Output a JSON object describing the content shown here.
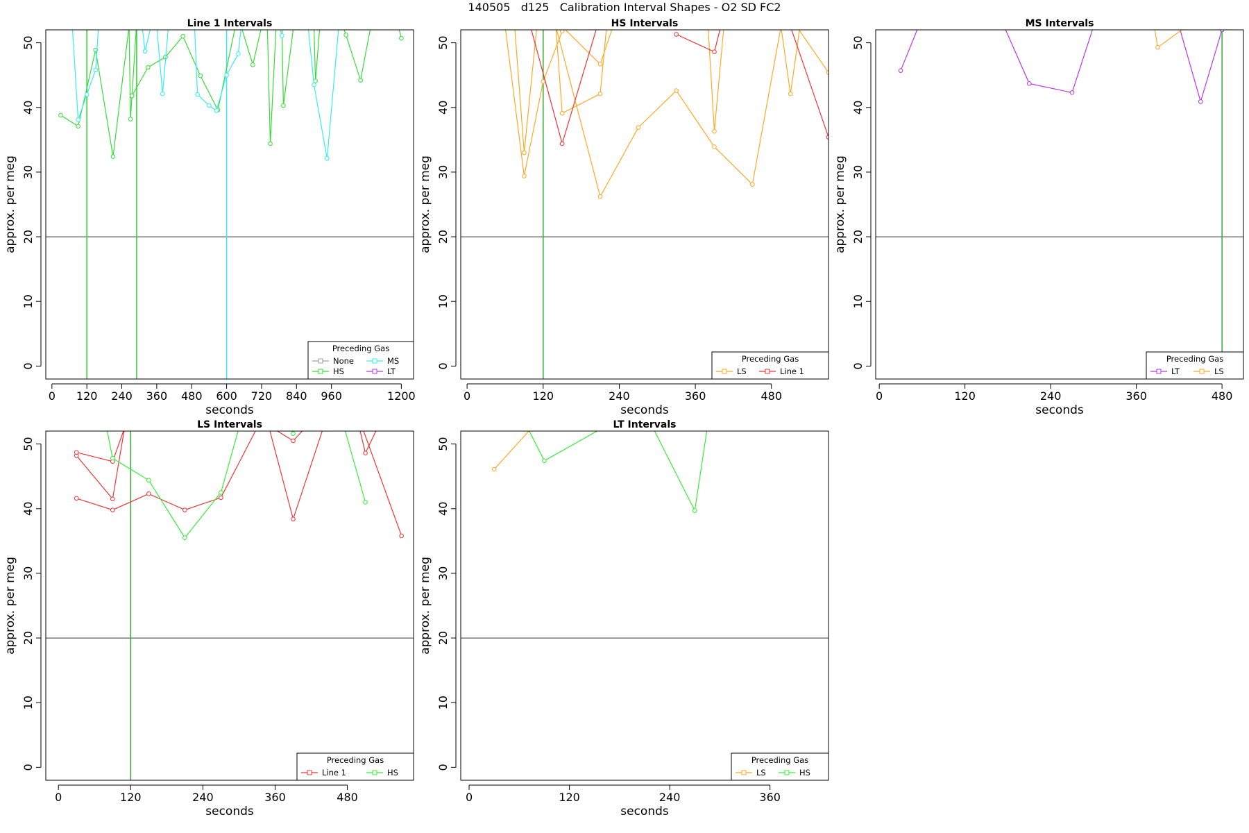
{
  "page_title": "140505   d125   Calibration Interval Shapes - O2 SD FC2",
  "chart_data": [
    {
      "type": "line",
      "title": "Line 1 Intervals",
      "xlabel": "seconds",
      "ylabel": "approx. per meg",
      "xlim": [
        -21,
        1242
      ],
      "ylim": [
        -2,
        52
      ],
      "x_ticks": [
        0,
        120,
        240,
        360,
        480,
        600,
        720,
        840,
        960,
        1200
      ],
      "x_tick_labels": [
        "0",
        "120",
        "240",
        "360",
        "480",
        "600",
        "720",
        "840",
        "960",
        "1200"
      ],
      "y_ticks": [
        0,
        10,
        20,
        30,
        40,
        50
      ],
      "hline": 20,
      "legend": {
        "title": "Preceding Gas",
        "position": "bottom-right",
        "columns": 2,
        "entries": [
          {
            "label": "None",
            "color": "#9e9e9e"
          },
          {
            "label": "MS",
            "color": "#33eeee"
          },
          {
            "label": "HS",
            "color": "#33dd33"
          },
          {
            "label": "LT",
            "color": "#bb33ee"
          }
        ]
      },
      "vlines": [
        {
          "x": 120,
          "color": "#33cc33"
        },
        {
          "x": 291,
          "color": "#33cc33"
        },
        {
          "x": 600,
          "color": "#33eeee"
        }
      ],
      "series": [
        {
          "name": "HS",
          "color": "#33dd33",
          "points": [
            [
              30,
              38.8
            ],
            [
              90,
              37.1
            ],
            [
              150,
              48.9
            ],
            [
              210,
              32.4
            ],
            [
              265,
              52.5
            ]
          ]
        },
        {
          "name": "HS",
          "color": "#33dd33",
          "points": [
            [
              265,
              52.5
            ],
            [
              270,
              38.2
            ],
            [
              275,
              41.8
            ],
            [
              290,
              52.5
            ]
          ]
        },
        {
          "name": "HS",
          "color": "#33dd33",
          "points": [
            [
              275,
              41.8
            ],
            [
              330,
              46.2
            ],
            [
              390,
              47.8
            ],
            [
              450,
              51.0
            ],
            [
              510,
              44.9
            ],
            [
              570,
              39.6
            ],
            [
              630,
              52.5
            ]
          ]
        },
        {
          "name": "HS",
          "color": "#33dd33",
          "points": [
            [
              650,
              52.5
            ],
            [
              690,
              46.6
            ],
            [
              720,
              52.5
            ]
          ]
        },
        {
          "name": "HS",
          "color": "#33dd33",
          "points": [
            [
              740,
              52.5
            ],
            [
              750,
              34.4
            ],
            [
              770,
              52.5
            ]
          ]
        },
        {
          "name": "HS",
          "color": "#33dd33",
          "points": [
            [
              790,
              52.5
            ],
            [
              795,
              40.3
            ],
            [
              830,
              52.5
            ]
          ]
        },
        {
          "name": "HS",
          "color": "#33dd33",
          "points": [
            [
              900,
              52.5
            ],
            [
              905,
              44.1
            ],
            [
              920,
              52.5
            ]
          ]
        },
        {
          "name": "HS",
          "color": "#33dd33",
          "points": [
            [
              1000,
              52.5
            ],
            [
              1010,
              51.2
            ],
            [
              1060,
              44.2
            ],
            [
              1095,
              52.5
            ]
          ]
        },
        {
          "name": "HS",
          "color": "#33dd33",
          "points": [
            [
              1190,
              52.5
            ],
            [
              1200,
              50.7
            ]
          ]
        },
        {
          "name": "MS",
          "color": "#33eeee",
          "points": [
            [
              70,
              52.5
            ],
            [
              90,
              38.1
            ],
            [
              120,
              42.0
            ],
            [
              150,
              45.8
            ],
            [
              160,
              52.5
            ]
          ]
        },
        {
          "name": "MS",
          "color": "#33eeee",
          "points": [
            [
              310,
              52.5
            ],
            [
              320,
              48.7
            ],
            [
              340,
              52.5
            ]
          ]
        },
        {
          "name": "MS",
          "color": "#33eeee",
          "points": [
            [
              360,
              52.5
            ],
            [
              380,
              42.1
            ],
            [
              400,
              52.5
            ]
          ]
        },
        {
          "name": "MS",
          "color": "#33eeee",
          "points": [
            [
              490,
              52.5
            ],
            [
              500,
              42.0
            ],
            [
              540,
              40.3
            ],
            [
              565,
              39.5
            ],
            [
              600,
              45.0
            ],
            [
              640,
              48.3
            ],
            [
              650,
              52.5
            ]
          ]
        },
        {
          "name": "MS",
          "color": "#33eeee",
          "points": [
            [
              780,
              52.5
            ],
            [
              790,
              51.1
            ]
          ]
        },
        {
          "name": "MS",
          "color": "#33eeee",
          "points": [
            [
              880,
              52.5
            ],
            [
              900,
              43.5
            ],
            [
              945,
              32.1
            ],
            [
              985,
              52.5
            ]
          ]
        }
      ]
    },
    {
      "type": "line",
      "title": "HS Intervals",
      "xlabel": "seconds",
      "ylabel": "approx. per meg",
      "xlim": [
        -10,
        570
      ],
      "ylim": [
        -2,
        52
      ],
      "x_ticks": [
        0,
        120,
        240,
        360,
        480
      ],
      "x_tick_labels": [
        "0",
        "120",
        "240",
        "360",
        "480"
      ],
      "y_ticks": [
        0,
        10,
        20,
        30,
        40,
        50
      ],
      "hline": 20,
      "legend": {
        "title": "Preceding Gas",
        "position": "bottom-right",
        "columns": 2,
        "entries": [
          {
            "label": "LS",
            "color": "#ffa726"
          },
          {
            "label": "Line 1",
            "color": "#ee3333"
          }
        ]
      },
      "vlines": [
        {
          "x": 120,
          "color": "#33aa33"
        }
      ],
      "series": [
        {
          "name": "LS",
          "color": "#ffa726",
          "points": [
            [
              60,
              52.5
            ],
            [
              90,
              29.4
            ],
            [
              120,
              44.0
            ],
            [
              150,
              51.8
            ],
            [
              162,
              52.5
            ]
          ]
        },
        {
          "name": "LS",
          "color": "#ffa726",
          "points": [
            [
              75,
              52.5
            ],
            [
              90,
              33.0
            ],
            [
              110,
              52.5
            ]
          ]
        },
        {
          "name": "LS",
          "color": "#ffa726",
          "points": [
            [
              140,
              52.5
            ],
            [
              150,
              39.1
            ],
            [
              210,
              42.1
            ],
            [
              220,
              52.5
            ]
          ]
        },
        {
          "name": "LS",
          "color": "#ffa726",
          "points": [
            [
              150,
              52.5
            ],
            [
              210,
              46.7
            ],
            [
              230,
              52.5
            ]
          ]
        },
        {
          "name": "LS",
          "color": "#ffa726",
          "points": [
            [
              140,
              52.5
            ],
            [
              210,
              26.2
            ],
            [
              270,
              36.9
            ],
            [
              330,
              42.6
            ],
            [
              390,
              33.9
            ],
            [
              450,
              28.1
            ],
            [
              495,
              52.5
            ]
          ]
        },
        {
          "name": "LS",
          "color": "#ffa726",
          "points": [
            [
              380,
              52.5
            ],
            [
              390,
              36.3
            ],
            [
              405,
              52.5
            ]
          ]
        },
        {
          "name": "LS",
          "color": "#ffa726",
          "points": [
            [
              495,
              52.5
            ],
            [
              510,
              42.1
            ],
            [
              525,
              52.5
            ]
          ]
        },
        {
          "name": "LS",
          "color": "#ffa726",
          "points": [
            [
              520,
              52.5
            ],
            [
              570,
              45.4
            ]
          ]
        },
        {
          "name": "Line 1",
          "color": "#ee3333",
          "points": [
            [
              100,
              52.5
            ],
            [
              150,
              34.4
            ],
            [
              205,
              52.5
            ]
          ]
        },
        {
          "name": "Line 1",
          "color": "#ee3333",
          "points": [
            [
              330,
              51.3
            ],
            [
              390,
              48.6
            ],
            [
              400,
              52.5
            ]
          ]
        },
        {
          "name": "Line 1",
          "color": "#ee3333",
          "points": [
            [
              510,
              52.5
            ],
            [
              570,
              35.4
            ]
          ]
        }
      ]
    },
    {
      "type": "line",
      "title": "MS Intervals",
      "xlabel": "seconds",
      "ylabel": "approx. per meg",
      "xlim": [
        -5,
        510
      ],
      "ylim": [
        -2,
        52
      ],
      "x_ticks": [
        0,
        120,
        240,
        360,
        480
      ],
      "x_tick_labels": [
        "0",
        "120",
        "240",
        "360",
        "480"
      ],
      "y_ticks": [
        0,
        10,
        20,
        30,
        40,
        50
      ],
      "hline": 20,
      "legend": {
        "title": "Preceding Gas",
        "position": "bottom-right",
        "columns": 2,
        "entries": [
          {
            "label": "LT",
            "color": "#bb33ee"
          },
          {
            "label": "LS",
            "color": "#ffa726"
          }
        ]
      },
      "vlines": [
        {
          "x": 480,
          "color": "#33aa33"
        }
      ],
      "series": [
        {
          "name": "LT",
          "color": "#bb33ee",
          "points": [
            [
              30,
              45.7
            ],
            [
              55,
              52.5
            ]
          ]
        },
        {
          "name": "LT",
          "color": "#bb33ee",
          "points": [
            [
              175,
              52.5
            ],
            [
              210,
              43.7
            ],
            [
              270,
              42.3
            ],
            [
              300,
              52.5
            ]
          ]
        },
        {
          "name": "LT",
          "color": "#bb33ee",
          "points": [
            [
              420,
              52.5
            ],
            [
              450,
              40.9
            ],
            [
              480,
              52.0
            ]
          ]
        },
        {
          "name": "LS",
          "color": "#ffa726",
          "points": [
            [
              385,
              52.5
            ],
            [
              390,
              49.3
            ],
            [
              430,
              52.5
            ]
          ]
        }
      ]
    },
    {
      "type": "line",
      "title": "LS Intervals",
      "xlabel": "seconds",
      "ylabel": "approx. per meg",
      "xlim": [
        -21,
        590
      ],
      "ylim": [
        -2,
        52
      ],
      "x_ticks": [
        0,
        120,
        240,
        360,
        480
      ],
      "x_tick_labels": [
        "0",
        "120",
        "240",
        "360",
        "480"
      ],
      "y_ticks": [
        0,
        10,
        20,
        30,
        40,
        50
      ],
      "hline": 20,
      "legend": {
        "title": "Preceding Gas",
        "position": "bottom-right",
        "columns": 2,
        "entries": [
          {
            "label": "Line 1",
            "color": "#ee3333"
          },
          {
            "label": "HS",
            "color": "#33ee33"
          }
        ]
      },
      "vlines": [
        {
          "x": 120,
          "color": "#33aa33"
        }
      ],
      "series": [
        {
          "name": "Line 1",
          "color": "#ee3333",
          "points": [
            [
              30,
              48.2
            ],
            [
              90,
              41.5
            ],
            [
              110,
              52.5
            ]
          ]
        },
        {
          "name": "Line 1",
          "color": "#ee3333",
          "points": [
            [
              30,
              48.7
            ],
            [
              90,
              47.3
            ],
            [
              110,
              52.5
            ]
          ]
        },
        {
          "name": "Line 1",
          "color": "#ee3333",
          "points": [
            [
              30,
              41.6
            ],
            [
              90,
              39.8
            ],
            [
              150,
              42.3
            ],
            [
              210,
              39.8
            ],
            [
              270,
              41.7
            ],
            [
              330,
              52.5
            ]
          ]
        },
        {
          "name": "Line 1",
          "color": "#ee3333",
          "points": [
            [
              355,
              52.5
            ],
            [
              390,
              50.5
            ],
            [
              410,
              52.5
            ]
          ]
        },
        {
          "name": "Line 1",
          "color": "#ee3333",
          "points": [
            [
              350,
              52.5
            ],
            [
              390,
              38.4
            ],
            [
              440,
              52.5
            ]
          ]
        },
        {
          "name": "Line 1",
          "color": "#ee3333",
          "points": [
            [
              500,
              52.5
            ],
            [
              510,
              48.6
            ],
            [
              530,
              52.5
            ]
          ]
        },
        {
          "name": "Line 1",
          "color": "#ee3333",
          "points": [
            [
              505,
              52.5
            ],
            [
              570,
              35.8
            ]
          ]
        },
        {
          "name": "HS",
          "color": "#33ee33",
          "points": [
            [
              80,
              52.5
            ],
            [
              90,
              47.8
            ],
            [
              150,
              44.4
            ],
            [
              210,
              35.5
            ],
            [
              270,
              42.5
            ],
            [
              300,
              52.5
            ]
          ]
        },
        {
          "name": "HS",
          "color": "#33ee33",
          "points": [
            [
              385,
              52.5
            ],
            [
              390,
              51.6
            ]
          ]
        },
        {
          "name": "HS",
          "color": "#33ee33",
          "points": [
            [
              475,
              52.5
            ],
            [
              510,
              41.0
            ]
          ]
        }
      ]
    },
    {
      "type": "line",
      "title": "LT Intervals",
      "xlabel": "seconds",
      "ylabel": "approx. per meg",
      "xlim": [
        -10,
        430
      ],
      "ylim": [
        -2,
        52
      ],
      "x_ticks": [
        0,
        120,
        240,
        360
      ],
      "x_tick_labels": [
        "0",
        "120",
        "240",
        "360"
      ],
      "y_ticks": [
        0,
        10,
        20,
        30,
        40,
        50
      ],
      "hline": 20,
      "legend": {
        "title": "Preceding Gas",
        "position": "bottom-right",
        "columns": 2,
        "entries": [
          {
            "label": "LS",
            "color": "#ffa726"
          },
          {
            "label": "HS",
            "color": "#33ee33"
          }
        ]
      },
      "vlines": [],
      "series": [
        {
          "name": "LS",
          "color": "#ffa726",
          "points": [
            [
              30,
              46.1
            ],
            [
              75,
              52.5
            ]
          ]
        },
        {
          "name": "HS",
          "color": "#33ee33",
          "points": [
            [
              70,
              52.5
            ],
            [
              90,
              47.4
            ],
            [
              160,
              52.5
            ]
          ]
        },
        {
          "name": "HS",
          "color": "#33ee33",
          "points": [
            [
              220,
              52.5
            ],
            [
              270,
              39.7
            ],
            [
              285,
              52.5
            ]
          ]
        }
      ]
    }
  ]
}
